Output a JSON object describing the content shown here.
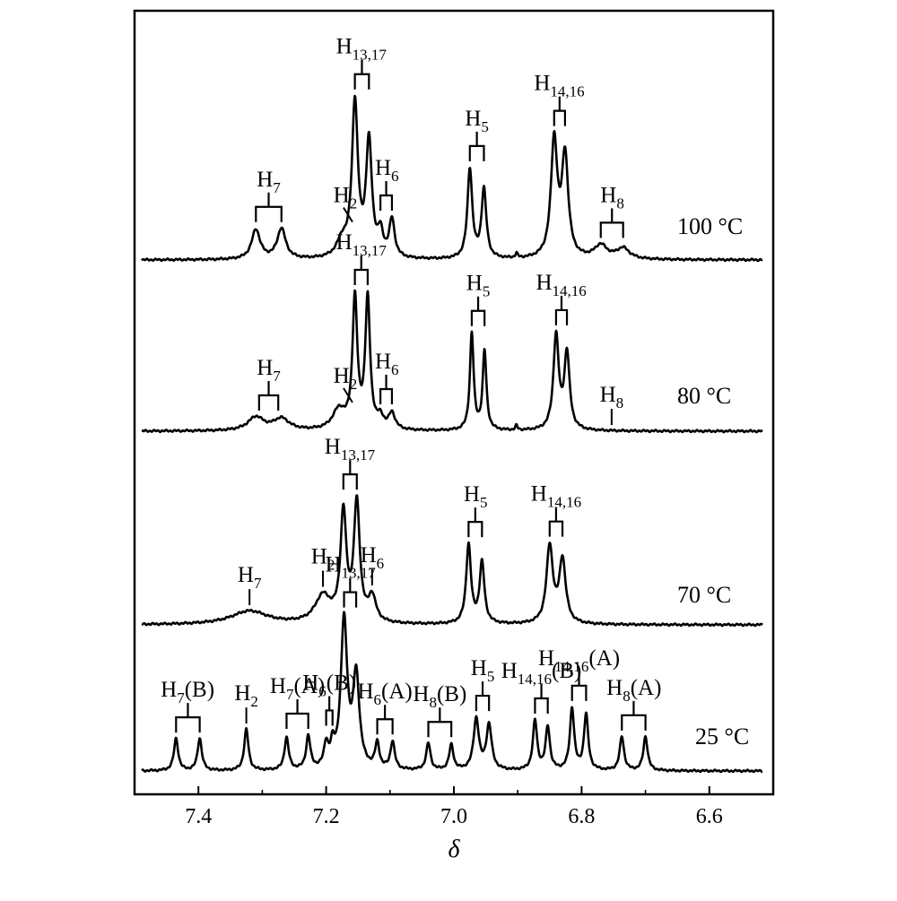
{
  "chart_data": {
    "type": "line",
    "xlabel": "δ",
    "xlim": [
      7.5,
      6.5
    ],
    "x_reversed": true,
    "xticks": [
      "7.4",
      "7.2",
      "7.0",
      "6.8",
      "6.6"
    ],
    "xtick_values": [
      7.4,
      7.2,
      7.0,
      6.8,
      6.6
    ],
    "grid": false,
    "series": [
      {
        "name": "100 °C",
        "peaks": [
          {
            "x": 7.31,
            "h": 0.33,
            "w": 0.008
          },
          {
            "x": 7.27,
            "h": 0.34,
            "w": 0.008
          },
          {
            "x": 7.175,
            "h": 0.18,
            "w": 0.01
          },
          {
            "x": 7.155,
            "h": 1.72,
            "w": 0.0055
          },
          {
            "x": 7.133,
            "h": 1.28,
            "w": 0.0055
          },
          {
            "x": 7.115,
            "h": 0.25,
            "w": 0.005
          },
          {
            "x": 7.097,
            "h": 0.42,
            "w": 0.005
          },
          {
            "x": 6.975,
            "h": 1.0,
            "w": 0.0045
          },
          {
            "x": 6.953,
            "h": 0.77,
            "w": 0.0045
          },
          {
            "x": 6.902,
            "h": 0.05,
            "w": 0.002
          },
          {
            "x": 6.843,
            "h": 1.3,
            "w": 0.006
          },
          {
            "x": 6.826,
            "h": 1.12,
            "w": 0.006
          },
          {
            "x": 6.77,
            "h": 0.15,
            "w": 0.012
          },
          {
            "x": 6.735,
            "h": 0.12,
            "w": 0.012
          }
        ]
      },
      {
        "name": "80 °C",
        "peaks": [
          {
            "x": 7.31,
            "h": 0.15,
            "w": 0.015
          },
          {
            "x": 7.27,
            "h": 0.13,
            "w": 0.015
          },
          {
            "x": 7.18,
            "h": 0.22,
            "w": 0.012
          },
          {
            "x": 7.155,
            "h": 1.45,
            "w": 0.0045
          },
          {
            "x": 7.135,
            "h": 1.45,
            "w": 0.0045
          },
          {
            "x": 7.115,
            "h": 0.12,
            "w": 0.006
          },
          {
            "x": 7.097,
            "h": 0.18,
            "w": 0.006
          },
          {
            "x": 6.972,
            "h": 1.08,
            "w": 0.0035
          },
          {
            "x": 6.952,
            "h": 0.88,
            "w": 0.0035
          },
          {
            "x": 6.902,
            "h": 0.05,
            "w": 0.002
          },
          {
            "x": 6.84,
            "h": 1.05,
            "w": 0.005
          },
          {
            "x": 6.823,
            "h": 0.85,
            "w": 0.005
          }
        ]
      },
      {
        "name": "70 °C",
        "peaks": [
          {
            "x": 7.32,
            "h": 0.15,
            "w": 0.035
          },
          {
            "x": 7.205,
            "h": 0.3,
            "w": 0.015
          },
          {
            "x": 7.173,
            "h": 1.2,
            "w": 0.0055
          },
          {
            "x": 7.152,
            "h": 1.32,
            "w": 0.0055
          },
          {
            "x": 7.128,
            "h": 0.28,
            "w": 0.007
          },
          {
            "x": 6.977,
            "h": 0.88,
            "w": 0.0045
          },
          {
            "x": 6.956,
            "h": 0.68,
            "w": 0.0045
          },
          {
            "x": 6.85,
            "h": 0.86,
            "w": 0.006
          },
          {
            "x": 6.83,
            "h": 0.71,
            "w": 0.006
          }
        ]
      },
      {
        "name": "25 °C",
        "peaks": [
          {
            "x": 7.435,
            "h": 0.36,
            "w": 0.004
          },
          {
            "x": 7.398,
            "h": 0.36,
            "w": 0.004
          },
          {
            "x": 7.325,
            "h": 0.46,
            "w": 0.004
          },
          {
            "x": 7.262,
            "h": 0.36,
            "w": 0.004
          },
          {
            "x": 7.228,
            "h": 0.37,
            "w": 0.004
          },
          {
            "x": 7.2,
            "h": 0.25,
            "w": 0.004
          },
          {
            "x": 7.19,
            "h": 0.21,
            "w": 0.004
          },
          {
            "x": 7.172,
            "h": 1.65,
            "w": 0.006
          },
          {
            "x": 7.153,
            "h": 1.02,
            "w": 0.006
          },
          {
            "x": 7.12,
            "h": 0.28,
            "w": 0.004
          },
          {
            "x": 7.096,
            "h": 0.31,
            "w": 0.004
          },
          {
            "x": 7.04,
            "h": 0.3,
            "w": 0.004
          },
          {
            "x": 7.004,
            "h": 0.28,
            "w": 0.004
          },
          {
            "x": 6.965,
            "h": 0.57,
            "w": 0.005
          },
          {
            "x": 6.945,
            "h": 0.5,
            "w": 0.005
          },
          {
            "x": 6.873,
            "h": 0.55,
            "w": 0.004
          },
          {
            "x": 6.853,
            "h": 0.48,
            "w": 0.004
          },
          {
            "x": 6.815,
            "h": 0.69,
            "w": 0.004
          },
          {
            "x": 6.793,
            "h": 0.62,
            "w": 0.004
          },
          {
            "x": 6.737,
            "h": 0.38,
            "w": 0.004
          },
          {
            "x": 6.7,
            "h": 0.38,
            "w": 0.004
          }
        ]
      }
    ],
    "peak_labels": [
      {
        "series": 0,
        "main": "H",
        "sub": "7",
        "suffix": "",
        "x": 7.29,
        "bracket": [
          7.31,
          7.27
        ]
      },
      {
        "series": 0,
        "main": "H",
        "sub": "2",
        "suffix": "",
        "x": 7.17,
        "slash": true
      },
      {
        "series": 0,
        "main": "H",
        "sub": "13,17",
        "suffix": "",
        "x": 7.145,
        "bracket": [
          7.155,
          7.133
        ]
      },
      {
        "series": 0,
        "main": "H",
        "sub": "6",
        "suffix": "",
        "x": 7.105,
        "bracket": [
          7.115,
          7.097
        ]
      },
      {
        "series": 0,
        "main": "H",
        "sub": "5",
        "suffix": "",
        "x": 6.964,
        "bracket": [
          6.975,
          6.953
        ]
      },
      {
        "series": 0,
        "main": "H",
        "sub": "14,16",
        "suffix": "",
        "x": 6.835,
        "bracket": [
          6.843,
          6.826
        ]
      },
      {
        "series": 0,
        "main": "H",
        "sub": "8",
        "suffix": "",
        "x": 6.752,
        "bracket": [
          6.77,
          6.735
        ]
      },
      {
        "series": 1,
        "main": "H",
        "sub": "7",
        "suffix": "",
        "x": 7.29,
        "bracket": [
          7.305,
          7.275
        ]
      },
      {
        "series": 1,
        "main": "H",
        "sub": "2",
        "suffix": "",
        "x": 7.17,
        "slash": true
      },
      {
        "series": 1,
        "main": "H",
        "sub": "13,17",
        "suffix": "",
        "x": 7.145,
        "bracket": [
          7.155,
          7.135
        ]
      },
      {
        "series": 1,
        "main": "H",
        "sub": "6",
        "suffix": "",
        "x": 7.105,
        "bracket": [
          7.115,
          7.097
        ]
      },
      {
        "series": 1,
        "main": "H",
        "sub": "5",
        "suffix": "",
        "x": 6.962,
        "bracket": [
          6.972,
          6.952
        ]
      },
      {
        "series": 1,
        "main": "H",
        "sub": "14,16",
        "suffix": "",
        "x": 6.832,
        "bracket": [
          6.84,
          6.823
        ]
      },
      {
        "series": 1,
        "main": "H",
        "sub": "8",
        "suffix": "",
        "x": 6.753,
        "tick": true
      },
      {
        "series": 2,
        "main": "H",
        "sub": "7",
        "suffix": "",
        "x": 7.32,
        "tick": true
      },
      {
        "series": 2,
        "main": "H",
        "sub": "2",
        "suffix": "",
        "x": 7.205,
        "tick": true
      },
      {
        "series": 2,
        "main": "H",
        "sub": "13,17",
        "suffix": "",
        "x": 7.163,
        "bracket": [
          7.173,
          7.152
        ]
      },
      {
        "series": 2,
        "main": "H",
        "sub": "6",
        "suffix": "",
        "x": 7.128,
        "tick": true
      },
      {
        "series": 2,
        "main": "H",
        "sub": "5",
        "suffix": "",
        "x": 6.966,
        "bracket": [
          6.977,
          6.956
        ]
      },
      {
        "series": 2,
        "main": "H",
        "sub": "14,16",
        "suffix": "",
        "x": 6.84,
        "bracket": [
          6.85,
          6.83
        ]
      },
      {
        "series": 3,
        "main": "H",
        "sub": "7",
        "suffix": "(B)",
        "x": 7.417,
        "bracket": [
          7.435,
          7.398
        ]
      },
      {
        "series": 3,
        "main": "H",
        "sub": "2",
        "suffix": "",
        "x": 7.325,
        "tick": true
      },
      {
        "series": 3,
        "main": "H",
        "sub": "7",
        "suffix": "(A)",
        "x": 7.245,
        "bracket": [
          7.262,
          7.228
        ]
      },
      {
        "series": 3,
        "main": "H",
        "sub": "6",
        "suffix": "(B)",
        "x": 7.195,
        "bracket": [
          7.2,
          7.19
        ]
      },
      {
        "series": 3,
        "main": "H",
        "sub": "13,17",
        "suffix": "",
        "x": 7.162,
        "bracket": [
          7.172,
          7.153
        ]
      },
      {
        "series": 3,
        "main": "H",
        "sub": "6",
        "suffix": "(A)",
        "x": 7.108,
        "bracket": [
          7.12,
          7.096
        ]
      },
      {
        "series": 3,
        "main": "H",
        "sub": "8",
        "suffix": "(B)",
        "x": 7.022,
        "bracket": [
          7.04,
          7.004
        ]
      },
      {
        "series": 3,
        "main": "H",
        "sub": "5",
        "suffix": "",
        "x": 6.955,
        "bracket": [
          6.965,
          6.945
        ]
      },
      {
        "series": 3,
        "main": "H",
        "sub": "14,16",
        "suffix": "(B)",
        "x": 6.863,
        "bracket": [
          6.873,
          6.853
        ]
      },
      {
        "series": 3,
        "main": "H",
        "sub": "14,16",
        "suffix": "(A)",
        "x": 6.804,
        "bracket": [
          6.815,
          6.793
        ]
      },
      {
        "series": 3,
        "main": "H",
        "sub": "8",
        "suffix": "(A)",
        "x": 6.718,
        "bracket": [
          6.737,
          6.7
        ]
      }
    ]
  }
}
